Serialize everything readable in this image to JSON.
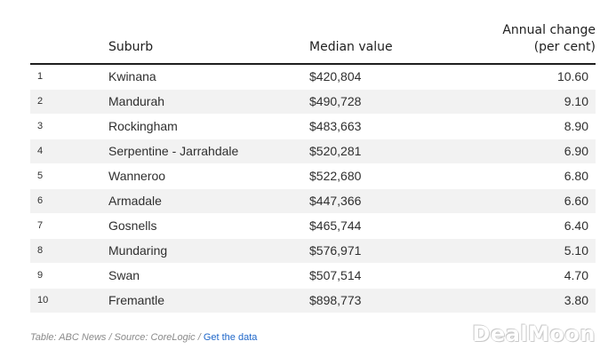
{
  "table": {
    "headers": {
      "rank": "",
      "suburb": "Suburb",
      "median": "Median value",
      "change_line1": "Annual change",
      "change_line2": "(per cent)"
    },
    "rows": [
      {
        "rank": "1",
        "suburb": "Kwinana",
        "median": "$420,804",
        "change": "10.60"
      },
      {
        "rank": "2",
        "suburb": "Mandurah",
        "median": "$490,728",
        "change": "9.10"
      },
      {
        "rank": "3",
        "suburb": "Rockingham",
        "median": "$483,663",
        "change": "8.90"
      },
      {
        "rank": "4",
        "suburb": "Serpentine - Jarrahdale",
        "median": "$520,281",
        "change": "6.90"
      },
      {
        "rank": "5",
        "suburb": "Wanneroo",
        "median": "$522,680",
        "change": "6.80"
      },
      {
        "rank": "6",
        "suburb": "Armadale",
        "median": "$447,366",
        "change": "6.60"
      },
      {
        "rank": "7",
        "suburb": "Gosnells",
        "median": "$465,744",
        "change": "6.40"
      },
      {
        "rank": "8",
        "suburb": "Mundaring",
        "median": "$576,971",
        "change": "5.10"
      },
      {
        "rank": "9",
        "suburb": "Swan",
        "median": "$507,514",
        "change": "4.70"
      },
      {
        "rank": "10",
        "suburb": "Fremantle",
        "median": "$898,773",
        "change": "3.80"
      }
    ]
  },
  "caption": {
    "source_text": "Table: ABC News / Source: CoreLogic /",
    "link_text": "Get the data"
  },
  "watermark": "DealMoon",
  "colors": {
    "stripe": "#f2f2f2",
    "link": "#1f67c9",
    "header_rule": "#1e1e1e"
  }
}
